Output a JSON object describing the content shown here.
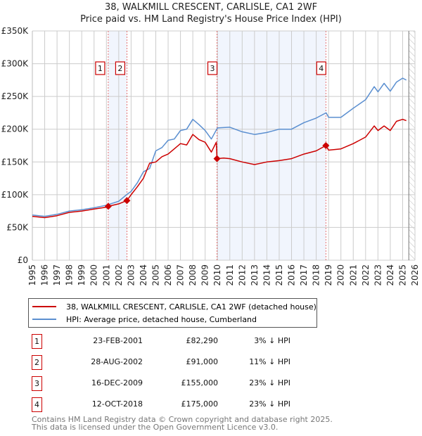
{
  "chart_data": {
    "type": "line",
    "title": "38, WALKMILL CRESCENT, CARLISLE, CA1 2WF",
    "subtitle": "Price paid vs. HM Land Registry's House Price Index (HPI)",
    "xlim": [
      1995,
      2026
    ],
    "ylim": [
      0,
      350000
    ],
    "x_ticks": [
      "1995",
      "1996",
      "1997",
      "1998",
      "1999",
      "2000",
      "2001",
      "2002",
      "2003",
      "2004",
      "2005",
      "2006",
      "2007",
      "2008",
      "2009",
      "2010",
      "2011",
      "2012",
      "2013",
      "2014",
      "2015",
      "2016",
      "2017",
      "2018",
      "2019",
      "2020",
      "2021",
      "2022",
      "2023",
      "2024",
      "2025",
      "2026"
    ],
    "y_ticks": [
      {
        "v": 0,
        "label": "£0"
      },
      {
        "v": 50000,
        "label": "£50K"
      },
      {
        "v": 100000,
        "label": "£100K"
      },
      {
        "v": 150000,
        "label": "£150K"
      },
      {
        "v": 200000,
        "label": "£200K"
      },
      {
        "v": 250000,
        "label": "£250K"
      },
      {
        "v": 300000,
        "label": "£300K"
      },
      {
        "v": 350000,
        "label": "£350K"
      }
    ],
    "grid": true,
    "forecast_from": 2025.5,
    "shaded_ranges": [
      [
        2001.15,
        2002.66
      ],
      [
        2009.96,
        2018.78
      ]
    ],
    "series": [
      {
        "name": "38, WALKMILL CRESCENT, CARLISLE, CA1 2WF (detached house)",
        "color": "#cc0000",
        "x": [
          1995,
          1996,
          1997,
          1998,
          1999,
          2000,
          2001,
          2001.15,
          2002,
          2002.66,
          2003,
          2003.5,
          2004,
          2004.5,
          2005,
          2005.5,
          2006,
          2006.5,
          2007,
          2007.5,
          2008,
          2008.5,
          2009,
          2009.5,
          2009.9,
          2009.96,
          2010.5,
          2011,
          2012,
          2013,
          2014,
          2015,
          2016,
          2017,
          2018,
          2018.78,
          2019,
          2020,
          2021,
          2022,
          2022.7,
          2023,
          2023.5,
          2024,
          2024.5,
          2025,
          2025.3
        ],
        "y": [
          67000,
          65000,
          68000,
          73000,
          75000,
          78000,
          81000,
          82290,
          86000,
          91000,
          100000,
          112000,
          125000,
          148000,
          150000,
          158000,
          162000,
          170000,
          178000,
          176000,
          192000,
          184000,
          180000,
          165000,
          180000,
          155000,
          156000,
          155000,
          150000,
          146000,
          150000,
          152000,
          155000,
          162000,
          167000,
          175000,
          168000,
          170000,
          178000,
          188000,
          205000,
          198000,
          205000,
          198000,
          212000,
          215000,
          213000
        ]
      },
      {
        "name": "HPI: Average price, detached house, Cumberland",
        "color": "#5b8fd0",
        "x": [
          1995,
          1996,
          1997,
          1998,
          1999,
          2000,
          2001,
          2002,
          2002.7,
          2003,
          2003.5,
          2004,
          2004.5,
          2005,
          2005.5,
          2006,
          2006.5,
          2007,
          2007.5,
          2008,
          2008.5,
          2009,
          2009.5,
          2010,
          2011,
          2012,
          2013,
          2014,
          2015,
          2016,
          2017,
          2018,
          2018.8,
          2019,
          2020,
          2021,
          2022,
          2022.7,
          2023,
          2023.5,
          2024,
          2024.5,
          2025,
          2025.3
        ],
        "y": [
          69000,
          67000,
          70000,
          75000,
          77000,
          80000,
          84000,
          90000,
          101000,
          105000,
          118000,
          135000,
          140000,
          167000,
          172000,
          183000,
          185000,
          198000,
          200000,
          215000,
          207000,
          198000,
          185000,
          202000,
          203000,
          196000,
          192000,
          195000,
          200000,
          200000,
          210000,
          217000,
          225000,
          218000,
          218000,
          232000,
          245000,
          265000,
          257000,
          270000,
          258000,
          272000,
          278000,
          275000
        ]
      }
    ],
    "sales": [
      {
        "n": "1",
        "x": 2001.15,
        "y": 82290,
        "date": "23-FEB-2001",
        "price": "£82,290",
        "hpi": "3% ↓ HPI"
      },
      {
        "n": "2",
        "x": 2002.66,
        "y": 91000,
        "date": "28-AUG-2002",
        "price": "£91,000",
        "hpi": "11% ↓ HPI"
      },
      {
        "n": "3",
        "x": 2009.96,
        "y": 155000,
        "date": "16-DEC-2009",
        "price": "£155,000",
        "hpi": "23% ↓ HPI"
      },
      {
        "n": "4",
        "x": 2018.78,
        "y": 175000,
        "date": "12-OCT-2018",
        "price": "£175,000",
        "hpi": "23% ↓ HPI"
      }
    ]
  },
  "footer": {
    "line1": "Contains HM Land Registry data © Crown copyright and database right 2025.",
    "line2": "This data is licensed under the Open Government Licence v3.0."
  }
}
